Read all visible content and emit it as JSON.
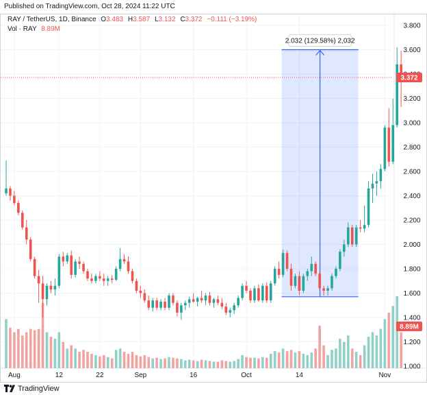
{
  "header": {
    "published": "Published on TradingView.com, Oct 28, 2024 11:22 UTC"
  },
  "legend": {
    "symbol": "RAY / TetherUS, 1D, Binance",
    "o_label": "O",
    "o_value": "3.483",
    "h_label": "H",
    "h_value": "3.587",
    "l_label": "L",
    "l_value": "3.132",
    "c_label": "C",
    "c_value": "3.372",
    "change": "−0.111 (−3.19%)",
    "vol_label": "Vol · RAY",
    "vol_value": "8.89M"
  },
  "measure_label": "2.032 (129.58%) 2,032",
  "price_tag": "3.372",
  "volume_tag": "8.89M",
  "footer": {
    "brand": "TradingView"
  },
  "colors": {
    "up": "#26a69a",
    "down": "#ef5350",
    "up_vol": "#8fd0c7",
    "down_vol": "#f3a39f",
    "measure": "#2962ff"
  },
  "chart_data": {
    "type": "candlestick",
    "title": "RAY / TetherUS, 1D, Binance",
    "y_axis": {
      "ticks": [
        "3.800",
        "3.600",
        "3.400",
        "3.200",
        "3.000",
        "2.800",
        "2.600",
        "2.400",
        "2.200",
        "2.000",
        "1.800",
        "1.600",
        "1.400",
        "1.200",
        "1.000"
      ],
      "range": [
        0.98,
        3.86
      ]
    },
    "x_axis": {
      "ticks": [
        "Aug",
        "12",
        "22",
        "Sep",
        "16",
        "Oct",
        "14",
        "Nov"
      ]
    },
    "price_marker": 3.372,
    "measure": {
      "from": 1.57,
      "to": 3.6,
      "change": "2.032 (129.58%) 2,032"
    },
    "candles": [
      {
        "o": 2.42,
        "h": 2.69,
        "l": 2.4,
        "c": 2.46,
        "v": 0.75
      },
      {
        "o": 2.46,
        "h": 2.48,
        "l": 2.36,
        "c": 2.4,
        "v": 0.62
      },
      {
        "o": 2.4,
        "h": 2.44,
        "l": 2.32,
        "c": 2.34,
        "v": 0.55
      },
      {
        "o": 2.34,
        "h": 2.36,
        "l": 2.24,
        "c": 2.26,
        "v": 0.6
      },
      {
        "o": 2.26,
        "h": 2.28,
        "l": 2.12,
        "c": 2.14,
        "v": 0.5
      },
      {
        "o": 2.14,
        "h": 2.2,
        "l": 2.0,
        "c": 2.04,
        "v": 0.55
      },
      {
        "o": 2.04,
        "h": 2.06,
        "l": 1.86,
        "c": 1.88,
        "v": 0.6
      },
      {
        "o": 1.88,
        "h": 1.9,
        "l": 1.72,
        "c": 1.74,
        "v": 0.58
      },
      {
        "o": 1.74,
        "h": 1.79,
        "l": 1.52,
        "c": 1.68,
        "v": 0.6
      },
      {
        "o": 1.68,
        "h": 1.74,
        "l": 1.4,
        "c": 1.55,
        "v": 1.0
      },
      {
        "o": 1.55,
        "h": 1.68,
        "l": 1.5,
        "c": 1.66,
        "v": 0.55
      },
      {
        "o": 1.66,
        "h": 1.7,
        "l": 1.6,
        "c": 1.63,
        "v": 0.48
      },
      {
        "o": 1.63,
        "h": 1.72,
        "l": 1.58,
        "c": 1.66,
        "v": 0.45
      },
      {
        "o": 1.66,
        "h": 1.92,
        "l": 1.64,
        "c": 1.9,
        "v": 0.55
      },
      {
        "o": 1.9,
        "h": 1.94,
        "l": 1.82,
        "c": 1.86,
        "v": 0.4
      },
      {
        "o": 1.86,
        "h": 1.93,
        "l": 1.84,
        "c": 1.91,
        "v": 0.3
      },
      {
        "o": 1.91,
        "h": 1.95,
        "l": 1.72,
        "c": 1.75,
        "v": 0.35
      },
      {
        "o": 1.75,
        "h": 1.88,
        "l": 1.73,
        "c": 1.86,
        "v": 0.3
      },
      {
        "o": 1.86,
        "h": 1.9,
        "l": 1.8,
        "c": 1.84,
        "v": 0.25
      },
      {
        "o": 1.84,
        "h": 1.86,
        "l": 1.76,
        "c": 1.78,
        "v": 0.28
      },
      {
        "o": 1.78,
        "h": 1.8,
        "l": 1.7,
        "c": 1.72,
        "v": 0.25
      },
      {
        "o": 1.72,
        "h": 1.76,
        "l": 1.68,
        "c": 1.7,
        "v": 0.22
      },
      {
        "o": 1.7,
        "h": 1.76,
        "l": 1.68,
        "c": 1.74,
        "v": 0.2
      },
      {
        "o": 1.74,
        "h": 1.78,
        "l": 1.7,
        "c": 1.72,
        "v": 0.18
      },
      {
        "o": 1.72,
        "h": 1.76,
        "l": 1.66,
        "c": 1.7,
        "v": 0.2
      },
      {
        "o": 1.7,
        "h": 1.74,
        "l": 1.66,
        "c": 1.72,
        "v": 0.17
      },
      {
        "o": 1.72,
        "h": 1.75,
        "l": 1.68,
        "c": 1.71,
        "v": 0.15
      },
      {
        "o": 1.71,
        "h": 1.82,
        "l": 1.7,
        "c": 1.8,
        "v": 0.28
      },
      {
        "o": 1.8,
        "h": 1.97,
        "l": 1.78,
        "c": 1.88,
        "v": 0.3
      },
      {
        "o": 1.88,
        "h": 1.92,
        "l": 1.84,
        "c": 1.86,
        "v": 0.25
      },
      {
        "o": 1.86,
        "h": 1.9,
        "l": 1.76,
        "c": 1.78,
        "v": 0.22
      },
      {
        "o": 1.78,
        "h": 1.8,
        "l": 1.68,
        "c": 1.7,
        "v": 0.25
      },
      {
        "o": 1.7,
        "h": 1.72,
        "l": 1.6,
        "c": 1.62,
        "v": 0.2
      },
      {
        "o": 1.62,
        "h": 1.66,
        "l": 1.56,
        "c": 1.6,
        "v": 0.18
      },
      {
        "o": 1.6,
        "h": 1.63,
        "l": 1.52,
        "c": 1.54,
        "v": 0.2
      },
      {
        "o": 1.54,
        "h": 1.58,
        "l": 1.46,
        "c": 1.48,
        "v": 0.17
      },
      {
        "o": 1.48,
        "h": 1.56,
        "l": 1.45,
        "c": 1.54,
        "v": 0.15
      },
      {
        "o": 1.54,
        "h": 1.56,
        "l": 1.46,
        "c": 1.48,
        "v": 0.16
      },
      {
        "o": 1.48,
        "h": 1.55,
        "l": 1.46,
        "c": 1.53,
        "v": 0.14
      },
      {
        "o": 1.53,
        "h": 1.56,
        "l": 1.46,
        "c": 1.48,
        "v": 0.15
      },
      {
        "o": 1.48,
        "h": 1.6,
        "l": 1.46,
        "c": 1.58,
        "v": 0.17
      },
      {
        "o": 1.58,
        "h": 1.6,
        "l": 1.5,
        "c": 1.52,
        "v": 0.16
      },
      {
        "o": 1.52,
        "h": 1.54,
        "l": 1.41,
        "c": 1.44,
        "v": 0.15
      },
      {
        "o": 1.44,
        "h": 1.52,
        "l": 1.38,
        "c": 1.5,
        "v": 0.14
      },
      {
        "o": 1.5,
        "h": 1.54,
        "l": 1.46,
        "c": 1.52,
        "v": 0.12
      },
      {
        "o": 1.52,
        "h": 1.57,
        "l": 1.48,
        "c": 1.55,
        "v": 0.13
      },
      {
        "o": 1.55,
        "h": 1.6,
        "l": 1.52,
        "c": 1.53,
        "v": 0.12
      },
      {
        "o": 1.53,
        "h": 1.57,
        "l": 1.49,
        "c": 1.56,
        "v": 0.11
      },
      {
        "o": 1.56,
        "h": 1.62,
        "l": 1.52,
        "c": 1.54,
        "v": 0.13
      },
      {
        "o": 1.54,
        "h": 1.6,
        "l": 1.5,
        "c": 1.58,
        "v": 0.12
      },
      {
        "o": 1.58,
        "h": 1.61,
        "l": 1.5,
        "c": 1.52,
        "v": 0.11
      },
      {
        "o": 1.52,
        "h": 1.56,
        "l": 1.48,
        "c": 1.55,
        "v": 0.1
      },
      {
        "o": 1.55,
        "h": 1.58,
        "l": 1.5,
        "c": 1.52,
        "v": 0.1
      },
      {
        "o": 1.52,
        "h": 1.56,
        "l": 1.47,
        "c": 1.49,
        "v": 0.12
      },
      {
        "o": 1.49,
        "h": 1.52,
        "l": 1.42,
        "c": 1.44,
        "v": 0.11
      },
      {
        "o": 1.44,
        "h": 1.48,
        "l": 1.4,
        "c": 1.46,
        "v": 0.1
      },
      {
        "o": 1.46,
        "h": 1.52,
        "l": 1.43,
        "c": 1.5,
        "v": 0.11
      },
      {
        "o": 1.5,
        "h": 1.58,
        "l": 1.48,
        "c": 1.56,
        "v": 0.14
      },
      {
        "o": 1.56,
        "h": 1.68,
        "l": 1.54,
        "c": 1.66,
        "v": 0.2
      },
      {
        "o": 1.66,
        "h": 1.7,
        "l": 1.6,
        "c": 1.62,
        "v": 0.17
      },
      {
        "o": 1.62,
        "h": 1.64,
        "l": 1.52,
        "c": 1.54,
        "v": 0.16
      },
      {
        "o": 1.54,
        "h": 1.66,
        "l": 1.52,
        "c": 1.64,
        "v": 0.16
      },
      {
        "o": 1.64,
        "h": 1.67,
        "l": 1.53,
        "c": 1.54,
        "v": 0.15
      },
      {
        "o": 1.54,
        "h": 1.68,
        "l": 1.52,
        "c": 1.66,
        "v": 0.17
      },
      {
        "o": 1.66,
        "h": 1.69,
        "l": 1.52,
        "c": 1.54,
        "v": 0.16
      },
      {
        "o": 1.54,
        "h": 1.7,
        "l": 1.52,
        "c": 1.68,
        "v": 0.22
      },
      {
        "o": 1.68,
        "h": 1.82,
        "l": 1.66,
        "c": 1.8,
        "v": 0.26
      },
      {
        "o": 1.8,
        "h": 1.86,
        "l": 1.72,
        "c": 1.75,
        "v": 0.24
      },
      {
        "o": 1.75,
        "h": 1.96,
        "l": 1.73,
        "c": 1.93,
        "v": 0.3
      },
      {
        "o": 1.93,
        "h": 1.95,
        "l": 1.78,
        "c": 1.8,
        "v": 0.26
      },
      {
        "o": 1.8,
        "h": 1.84,
        "l": 1.62,
        "c": 1.66,
        "v": 0.28
      },
      {
        "o": 1.66,
        "h": 1.76,
        "l": 1.64,
        "c": 1.74,
        "v": 0.24
      },
      {
        "o": 1.74,
        "h": 1.78,
        "l": 1.58,
        "c": 1.62,
        "v": 0.26
      },
      {
        "o": 1.62,
        "h": 1.76,
        "l": 1.6,
        "c": 1.74,
        "v": 0.22
      },
      {
        "o": 1.74,
        "h": 1.8,
        "l": 1.7,
        "c": 1.78,
        "v": 0.2
      },
      {
        "o": 1.78,
        "h": 1.9,
        "l": 1.74,
        "c": 1.84,
        "v": 0.24
      },
      {
        "o": 1.84,
        "h": 1.86,
        "l": 1.74,
        "c": 1.76,
        "v": 0.3
      },
      {
        "o": 1.76,
        "h": 1.78,
        "l": 1.62,
        "c": 1.64,
        "v": 0.65
      },
      {
        "o": 1.64,
        "h": 1.66,
        "l": 1.58,
        "c": 1.62,
        "v": 0.35
      },
      {
        "o": 1.62,
        "h": 1.66,
        "l": 1.58,
        "c": 1.64,
        "v": 0.2
      },
      {
        "o": 1.64,
        "h": 1.76,
        "l": 1.62,
        "c": 1.74,
        "v": 0.28
      },
      {
        "o": 1.74,
        "h": 1.82,
        "l": 1.72,
        "c": 1.8,
        "v": 0.3
      },
      {
        "o": 1.8,
        "h": 1.96,
        "l": 1.78,
        "c": 1.94,
        "v": 0.45
      },
      {
        "o": 1.94,
        "h": 2.04,
        "l": 1.9,
        "c": 2.0,
        "v": 0.4
      },
      {
        "o": 2.0,
        "h": 2.18,
        "l": 1.98,
        "c": 2.14,
        "v": 0.5
      },
      {
        "o": 2.14,
        "h": 2.16,
        "l": 1.98,
        "c": 2.0,
        "v": 0.3
      },
      {
        "o": 2.0,
        "h": 2.16,
        "l": 1.98,
        "c": 2.14,
        "v": 0.25
      },
      {
        "o": 2.14,
        "h": 2.2,
        "l": 2.1,
        "c": 2.13,
        "v": 0.2
      },
      {
        "o": 2.13,
        "h": 2.32,
        "l": 2.1,
        "c": 2.16,
        "v": 0.35
      },
      {
        "o": 2.16,
        "h": 2.52,
        "l": 2.14,
        "c": 2.46,
        "v": 0.48
      },
      {
        "o": 2.46,
        "h": 2.58,
        "l": 2.34,
        "c": 2.5,
        "v": 0.55
      },
      {
        "o": 2.5,
        "h": 2.6,
        "l": 2.4,
        "c": 2.52,
        "v": 0.5
      },
      {
        "o": 2.52,
        "h": 2.66,
        "l": 2.46,
        "c": 2.62,
        "v": 0.6
      },
      {
        "o": 2.62,
        "h": 2.98,
        "l": 2.6,
        "c": 2.96,
        "v": 0.75
      },
      {
        "o": 2.96,
        "h": 3.12,
        "l": 2.64,
        "c": 2.68,
        "v": 0.85
      },
      {
        "o": 2.68,
        "h": 3.2,
        "l": 2.66,
        "c": 2.98,
        "v": 0.95
      },
      {
        "o": 2.98,
        "h": 3.62,
        "l": 2.96,
        "c": 3.48,
        "v": 1.1
      },
      {
        "o": 3.48,
        "h": 3.59,
        "l": 3.13,
        "c": 3.37,
        "v": 0.55
      }
    ]
  }
}
